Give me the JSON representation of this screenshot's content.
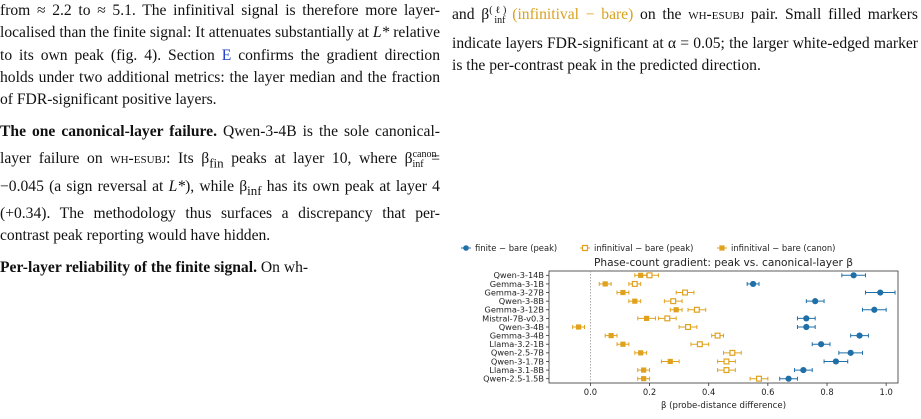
{
  "left_column": {
    "p1": {
      "t1": "from ≈ 2.2 to ≈ 5.1. The infinitival signal is therefore more layer-localised than the finite signal: It attenuates substantially at ",
      "Lstar": "L*",
      "t2": " relative to its own peak (fig. 4). Section ",
      "section_ref": "E",
      "t3": " confirms the gradient direction holds under two additional metrics: the layer median and the fraction of FDR-significant positive layers."
    },
    "p2": {
      "heading": "The one canonical-layer failure.",
      "t1": " Qwen-3-4B is the sole canonical-layer failure on ",
      "contrast": "wh-esubj",
      "t2": ": Its β",
      "fin_sub": "fin",
      "t3": " peaks at layer 10, where β",
      "canon_sup": "canon",
      "inf_sub": "inf",
      "t4": " = −0.045 (a sign reversal at ",
      "Lstar": "L*",
      "t5": "), while β",
      "inf_sub2": "inf",
      "t6": " has its own peak at layer 4 (+0.34). The methodology thus surfaces a discrepancy that per-contrast peak reporting would have hidden."
    },
    "p3": {
      "heading": "Per-layer reliability of the finite signal.",
      "t1": " On wh-"
    }
  },
  "caption": {
    "t1": "and β",
    "sup": "(ℓ)",
    "sub": "inf",
    "colored": "(infinitival − bare)",
    "t2": " on the ",
    "contrast": "wh-esubj",
    "t3": " pair. Small filled markers indicate layers FDR-significant at α = 0.05; the larger white-edged marker is the per-contrast peak in the predicted direction."
  },
  "chart_data": {
    "type": "scatter",
    "title": "Phase-count gradient: peak vs. canonical-layer β",
    "xlabel": "β (probe-distance difference)",
    "xlim": [
      -0.14,
      1.04
    ],
    "xticks": [
      0.0,
      0.2,
      0.4,
      0.6,
      0.8,
      1.0
    ],
    "xticklabels": [
      "0.0",
      "0.2",
      "0.4",
      "0.6",
      "0.8",
      "1.0"
    ],
    "reference_line_x": 0.0,
    "legend_position": "top",
    "categories": [
      "Qwen-3-14B",
      "Gemma-3-1B",
      "Gemma-3-27B",
      "Qwen-3-8B",
      "Gemma-3-12B",
      "Mistral-7B-v0.3",
      "Qwen-3-4B",
      "Gemma-3-4B",
      "Llama-3.2-1B",
      "Qwen-2.5-7B",
      "Qwen-3-1.7B",
      "Llama-3.1-8B",
      "Qwen-2.5-1.5B"
    ],
    "series": [
      {
        "name": "finite − bare (peak)",
        "color": "#1f6fa8",
        "marker": "circle",
        "values": [
          0.89,
          0.55,
          0.98,
          0.76,
          0.96,
          0.73,
          0.73,
          0.91,
          0.78,
          0.88,
          0.83,
          0.72,
          0.67
        ],
        "err": [
          0.04,
          0.02,
          0.05,
          0.03,
          0.04,
          0.03,
          0.03,
          0.03,
          0.03,
          0.04,
          0.04,
          0.03,
          0.03
        ]
      },
      {
        "name": "infinitival − bare (peak)",
        "color": "#e0a21d",
        "marker": "hollow-square",
        "values": [
          0.2,
          0.15,
          0.32,
          0.28,
          0.36,
          0.26,
          0.33,
          0.43,
          0.37,
          0.48,
          0.46,
          0.46,
          0.57
        ],
        "err": [
          0.03,
          0.02,
          0.03,
          0.03,
          0.03,
          0.03,
          0.03,
          0.02,
          0.03,
          0.03,
          0.03,
          0.03,
          0.03
        ]
      },
      {
        "name": "infinitival − bare (canon)",
        "color": "#e0a21d",
        "marker": "filled-square",
        "values": [
          0.17,
          0.05,
          0.11,
          0.15,
          0.29,
          0.19,
          -0.04,
          0.07,
          0.11,
          0.17,
          0.27,
          0.18,
          0.18
        ],
        "err": [
          0.02,
          0.02,
          0.02,
          0.02,
          0.02,
          0.03,
          0.02,
          0.02,
          0.02,
          0.02,
          0.03,
          0.02,
          0.02
        ]
      }
    ]
  }
}
